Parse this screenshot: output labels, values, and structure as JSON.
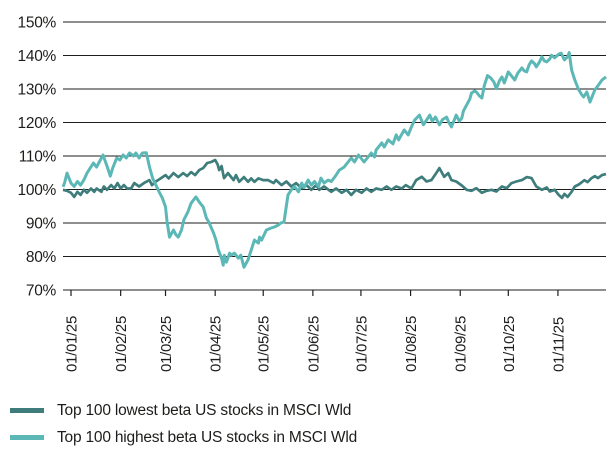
{
  "chart_data": {
    "type": "line",
    "title": "",
    "grid": "horizontal",
    "legend_position": "bottom-left",
    "y_axis": {
      "unit": "%",
      "min": 70,
      "max": 150,
      "tick_step": 10,
      "tick_labels": [
        "150%",
        "140%",
        "130%",
        "120%",
        "110%",
        "100%",
        "90%",
        "80%",
        "70%"
      ]
    },
    "x_axis": {
      "tick_labels": [
        "01/01/25",
        "01/02/25",
        "01/03/25",
        "01/04/25",
        "01/05/25",
        "01/06/25",
        "01/07/25",
        "01/08/25",
        "01/09/25",
        "01/10/25",
        "01/11/25"
      ],
      "tick_t": [
        5,
        36,
        64,
        95,
        125,
        156,
        186,
        217,
        248,
        278,
        309
      ],
      "t_max": 339
    },
    "series": [
      {
        "name": "Top 100 lowest beta US stocks in MSCI Wld",
        "color": "#3E7D7C",
        "points": [
          [
            0,
            99.9
          ],
          [
            2.5,
            99.6
          ],
          [
            5,
            99.0
          ],
          [
            7,
            97.8
          ],
          [
            9,
            99.3
          ],
          [
            11,
            98.4
          ],
          [
            13,
            99.9
          ],
          [
            15,
            99.0
          ],
          [
            17.5,
            100.3
          ],
          [
            19.5,
            99.3
          ],
          [
            21,
            100.3
          ],
          [
            24,
            99.3
          ],
          [
            25.5,
            100.9
          ],
          [
            27.5,
            99.9
          ],
          [
            30,
            101.3
          ],
          [
            32,
            100.3
          ],
          [
            34,
            101.9
          ],
          [
            36,
            100.3
          ],
          [
            38,
            101.3
          ],
          [
            40,
            100.3
          ],
          [
            42.5,
            100.3
          ],
          [
            44.5,
            101.9
          ],
          [
            47.5,
            100.9
          ],
          [
            50.5,
            101.9
          ],
          [
            54,
            102.8
          ],
          [
            55.5,
            101.3
          ],
          [
            58,
            102.4
          ],
          [
            61,
            103.3
          ],
          [
            64,
            104.3
          ],
          [
            66,
            103.3
          ],
          [
            69,
            104.9
          ],
          [
            72,
            103.7
          ],
          [
            75,
            104.9
          ],
          [
            77.5,
            104.0
          ],
          [
            80,
            105.2
          ],
          [
            82.5,
            104.3
          ],
          [
            85,
            105.8
          ],
          [
            87.5,
            106.4
          ],
          [
            90,
            107.9
          ],
          [
            92.5,
            108.2
          ],
          [
            95,
            108.8
          ],
          [
            96.5,
            107.5
          ],
          [
            97.5,
            105.8
          ],
          [
            99,
            107.0
          ],
          [
            100.5,
            103.4
          ],
          [
            103,
            104.9
          ],
          [
            106.5,
            102.8
          ],
          [
            108,
            104.3
          ],
          [
            110,
            102.3
          ],
          [
            113,
            103.7
          ],
          [
            115.5,
            102.3
          ],
          [
            117.5,
            103.3
          ],
          [
            119.5,
            102.3
          ],
          [
            122,
            103.3
          ],
          [
            125,
            102.8
          ],
          [
            128,
            102.8
          ],
          [
            131.5,
            101.9
          ],
          [
            133,
            102.8
          ],
          [
            136.5,
            101.3
          ],
          [
            139.5,
            102.4
          ],
          [
            142.5,
            100.9
          ],
          [
            145.5,
            101.9
          ],
          [
            149,
            100.4
          ],
          [
            152,
            101.3
          ],
          [
            155,
            99.9
          ],
          [
            158,
            101.3
          ],
          [
            160,
            99.9
          ],
          [
            163,
            100.9
          ],
          [
            167.5,
            99.3
          ],
          [
            170.5,
            100.3
          ],
          [
            174,
            99.0
          ],
          [
            177,
            99.9
          ],
          [
            180,
            98.4
          ],
          [
            183,
            99.9
          ],
          [
            186.5,
            99.0
          ],
          [
            189.5,
            100.3
          ],
          [
            192.5,
            99.3
          ],
          [
            195.5,
            100.3
          ],
          [
            199,
            99.9
          ],
          [
            202,
            100.9
          ],
          [
            205,
            99.9
          ],
          [
            208,
            100.9
          ],
          [
            211.5,
            100.3
          ],
          [
            214,
            101.3
          ],
          [
            217.5,
            100.3
          ],
          [
            220.5,
            102.8
          ],
          [
            224,
            103.8
          ],
          [
            227,
            102.4
          ],
          [
            230,
            102.8
          ],
          [
            233,
            104.9
          ],
          [
            235,
            106.4
          ],
          [
            238,
            103.8
          ],
          [
            240.5,
            104.9
          ],
          [
            242.5,
            102.8
          ],
          [
            245.5,
            102.4
          ],
          [
            249,
            101.2
          ],
          [
            252,
            99.9
          ],
          [
            255,
            99.6
          ],
          [
            258,
            100.4
          ],
          [
            261.5,
            99.0
          ],
          [
            264.5,
            99.6
          ],
          [
            267.5,
            99.9
          ],
          [
            270.5,
            99.4
          ],
          [
            274,
            100.9
          ],
          [
            277,
            100.4
          ],
          [
            280,
            101.9
          ],
          [
            283,
            102.4
          ],
          [
            286.5,
            102.8
          ],
          [
            289.5,
            103.7
          ],
          [
            292.5,
            103.4
          ],
          [
            295.5,
            100.9
          ],
          [
            299,
            99.9
          ],
          [
            302,
            100.6
          ],
          [
            304,
            99.4
          ],
          [
            307,
            99.9
          ],
          [
            309.5,
            98.4
          ],
          [
            311.5,
            97.5
          ],
          [
            313,
            98.7
          ],
          [
            315,
            97.8
          ],
          [
            317.5,
            99.3
          ],
          [
            319.5,
            100.9
          ],
          [
            322,
            101.5
          ],
          [
            324,
            102.2
          ],
          [
            325.5,
            102.8
          ],
          [
            327.5,
            102.2
          ],
          [
            330,
            103.4
          ],
          [
            332,
            104.0
          ],
          [
            334,
            103.4
          ],
          [
            336.5,
            104.3
          ],
          [
            339,
            104.6
          ]
        ]
      },
      {
        "name": "Top 100 highest beta US stocks in MSCI Wld",
        "color": "#5CB8B6",
        "points": [
          [
            0,
            100.8
          ],
          [
            1,
            102.0
          ],
          [
            2.5,
            104.9
          ],
          [
            5,
            101.9
          ],
          [
            7,
            100.9
          ],
          [
            9,
            102.4
          ],
          [
            11,
            101.3
          ],
          [
            13,
            102.8
          ],
          [
            15,
            104.9
          ],
          [
            17,
            106.4
          ],
          [
            19,
            107.9
          ],
          [
            21,
            106.7
          ],
          [
            23,
            108.5
          ],
          [
            25,
            110.3
          ],
          [
            27.5,
            107.0
          ],
          [
            29.5,
            104.0
          ],
          [
            31,
            106.4
          ],
          [
            33.5,
            109.4
          ],
          [
            35.5,
            108.8
          ],
          [
            37.5,
            110.3
          ],
          [
            39.5,
            109.4
          ],
          [
            41.5,
            110.9
          ],
          [
            44,
            110.0
          ],
          [
            45.5,
            110.9
          ],
          [
            47.5,
            109.4
          ],
          [
            49.5,
            110.9
          ],
          [
            52,
            111.0
          ],
          [
            54,
            106.7
          ],
          [
            56,
            103.3
          ],
          [
            58,
            101.3
          ],
          [
            60,
            99.3
          ],
          [
            62,
            97.5
          ],
          [
            64,
            94.8
          ],
          [
            65,
            90.3
          ],
          [
            66.5,
            85.8
          ],
          [
            69,
            87.9
          ],
          [
            70.5,
            86.5
          ],
          [
            72,
            85.8
          ],
          [
            74,
            87.9
          ],
          [
            75.5,
            91.0
          ],
          [
            78,
            93.3
          ],
          [
            80,
            95.9
          ],
          [
            83,
            97.8
          ],
          [
            85,
            96.3
          ],
          [
            87.5,
            94.8
          ],
          [
            89.5,
            91.5
          ],
          [
            91,
            90.3
          ],
          [
            94,
            87.0
          ],
          [
            95.5,
            84.9
          ],
          [
            97,
            81.9
          ],
          [
            99,
            79.5
          ],
          [
            100,
            77.4
          ],
          [
            100.7,
            80.4
          ],
          [
            102,
            78.3
          ],
          [
            104,
            81.0
          ],
          [
            105,
            80.4
          ],
          [
            107,
            81.0
          ],
          [
            109.5,
            79.5
          ],
          [
            111,
            80.4
          ],
          [
            113,
            76.8
          ],
          [
            115.5,
            79.0
          ],
          [
            117.5,
            81.9
          ],
          [
            119.5,
            84.9
          ],
          [
            122,
            84.0
          ],
          [
            122.7,
            85.8
          ],
          [
            124,
            84.9
          ],
          [
            127,
            87.9
          ],
          [
            130,
            88.5
          ],
          [
            132,
            88.8
          ],
          [
            134.5,
            89.4
          ],
          [
            136,
            90.0
          ],
          [
            138,
            90.3
          ],
          [
            140.5,
            98.4
          ],
          [
            142.5,
            99.9
          ],
          [
            144.5,
            100.9
          ],
          [
            147,
            99.3
          ],
          [
            149,
            101.9
          ],
          [
            150.5,
            100.6
          ],
          [
            153,
            102.8
          ],
          [
            155,
            101.3
          ],
          [
            157,
            102.4
          ],
          [
            159.5,
            100.9
          ],
          [
            161,
            103.4
          ],
          [
            163,
            101.9
          ],
          [
            165.5,
            102.8
          ],
          [
            167.5,
            102.4
          ],
          [
            170.5,
            104.3
          ],
          [
            172.5,
            105.8
          ],
          [
            175.5,
            106.7
          ],
          [
            178,
            108.2
          ],
          [
            180,
            109.4
          ],
          [
            182,
            108.2
          ],
          [
            184.5,
            110.3
          ],
          [
            186,
            109.4
          ],
          [
            188,
            108.2
          ],
          [
            192.5,
            110.9
          ],
          [
            194.5,
            109.7
          ],
          [
            195.5,
            111.8
          ],
          [
            199,
            113.9
          ],
          [
            200.5,
            112.7
          ],
          [
            203,
            114.8
          ],
          [
            206,
            113.6
          ],
          [
            208,
            116.3
          ],
          [
            209.5,
            114.8
          ],
          [
            213,
            117.8
          ],
          [
            215.5,
            116.3
          ],
          [
            217.5,
            118.7
          ],
          [
            219.5,
            120.7
          ],
          [
            222.5,
            122.2
          ],
          [
            225,
            119.3
          ],
          [
            229,
            122.2
          ],
          [
            230.5,
            120.4
          ],
          [
            232.5,
            121.6
          ],
          [
            235,
            119.3
          ],
          [
            237,
            120.9
          ],
          [
            239.5,
            121.6
          ],
          [
            241,
            119.9
          ],
          [
            242.5,
            118.7
          ],
          [
            244.5,
            121.0
          ],
          [
            245.5,
            122.2
          ],
          [
            247.5,
            120.4
          ],
          [
            249,
            121.3
          ],
          [
            250,
            123.4
          ],
          [
            252,
            125.2
          ],
          [
            254,
            127.0
          ],
          [
            255,
            128.8
          ],
          [
            257,
            129.4
          ],
          [
            258,
            129.1
          ],
          [
            260,
            127.9
          ],
          [
            261.5,
            127.3
          ],
          [
            263,
            131.0
          ],
          [
            265,
            134.0
          ],
          [
            267,
            133.3
          ],
          [
            269,
            132.1
          ],
          [
            270.5,
            130.1
          ],
          [
            272.5,
            132.5
          ],
          [
            274,
            133.6
          ],
          [
            275.5,
            131.8
          ],
          [
            278,
            135.1
          ],
          [
            280,
            133.9
          ],
          [
            282,
            132.7
          ],
          [
            284,
            134.8
          ],
          [
            286.5,
            136.3
          ],
          [
            288,
            135.4
          ],
          [
            289.5,
            135.1
          ],
          [
            291,
            137.2
          ],
          [
            292.5,
            138.4
          ],
          [
            294.5,
            137.5
          ],
          [
            295.5,
            136.6
          ],
          [
            297.5,
            138.1
          ],
          [
            299,
            139.6
          ],
          [
            300.5,
            138.4
          ],
          [
            302,
            138.1
          ],
          [
            304,
            139.0
          ],
          [
            305,
            140.1
          ],
          [
            307,
            139.3
          ],
          [
            309.5,
            140.4
          ],
          [
            311,
            140.7
          ],
          [
            313,
            138.7
          ],
          [
            315,
            139.6
          ],
          [
            316,
            140.9
          ],
          [
            317.5,
            135.7
          ],
          [
            319.5,
            132.7
          ],
          [
            322,
            129.7
          ],
          [
            324,
            128.2
          ],
          [
            325,
            127.6
          ],
          [
            327,
            129.1
          ],
          [
            329,
            126.1
          ],
          [
            330,
            127.3
          ],
          [
            332,
            129.7
          ],
          [
            334,
            131.0
          ],
          [
            336.5,
            132.7
          ],
          [
            339,
            133.6
          ]
        ]
      }
    ]
  },
  "legend": {
    "items": [
      {
        "label": "Top 100 lowest beta US stocks in MSCI Wld",
        "color": "#3E7D7C"
      },
      {
        "label": "Top 100 highest beta US stocks in MSCI Wld",
        "color": "#5CB8B6"
      }
    ]
  },
  "style": {
    "axis_color": "#1d1d1b",
    "background": "#ffffff"
  }
}
